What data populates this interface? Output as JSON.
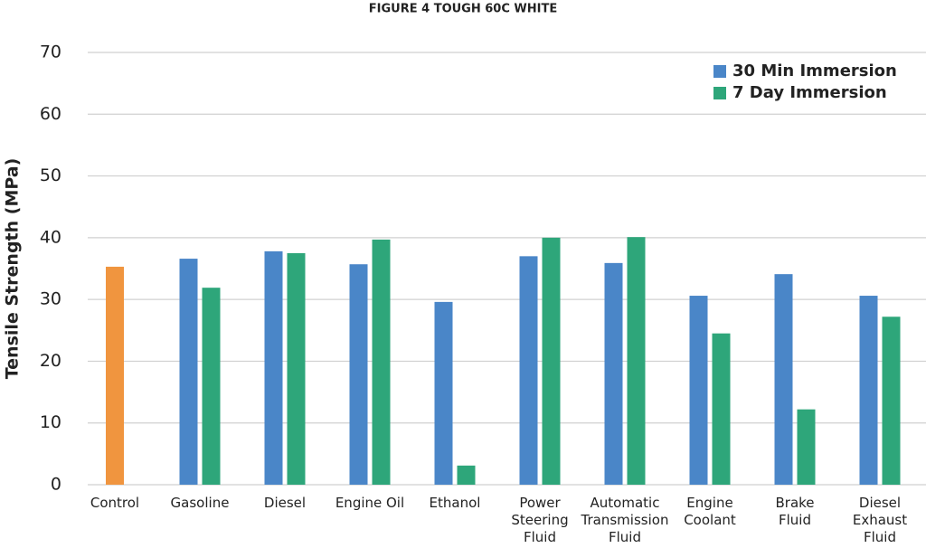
{
  "chart_data": {
    "type": "bar",
    "title": "FIGURE 4 TOUGH 60C WHITE",
    "y_label": "Tensile Strength (MPa)",
    "categories": [
      "Control",
      "Gasoline",
      "Diesel",
      "Engine Oil",
      "Ethanol",
      "Power\nSteering\nFluid",
      "Automatic\nTransmission\nFluid",
      "Engine\nCoolant",
      "Brake\nFluid",
      "Diesel\nExhaust\nFluid"
    ],
    "series": [
      {
        "name": "30 Min Immersion",
        "color": "#4a86c8",
        "point_colors": [
          "#f0953f",
          "#4a86c8",
          "#4a86c8",
          "#4a86c8",
          "#4a86c8",
          "#4a86c8",
          "#4a86c8",
          "#4a86c8",
          "#4a86c8",
          "#4a86c8"
        ],
        "values": [
          35.3,
          36.6,
          37.8,
          35.7,
          29.6,
          37.0,
          35.9,
          30.6,
          34.1,
          30.6
        ]
      },
      {
        "name": "7 Day Immersion",
        "color": "#2ea67a",
        "values": [
          null,
          31.9,
          37.5,
          39.7,
          3.1,
          40.0,
          40.1,
          24.5,
          12.2,
          27.2
        ]
      }
    ],
    "ylim": [
      0,
      70
    ],
    "yticks": [
      0,
      10,
      20,
      30,
      40,
      50,
      60,
      70
    ],
    "grid": true,
    "legend": "top-right"
  }
}
